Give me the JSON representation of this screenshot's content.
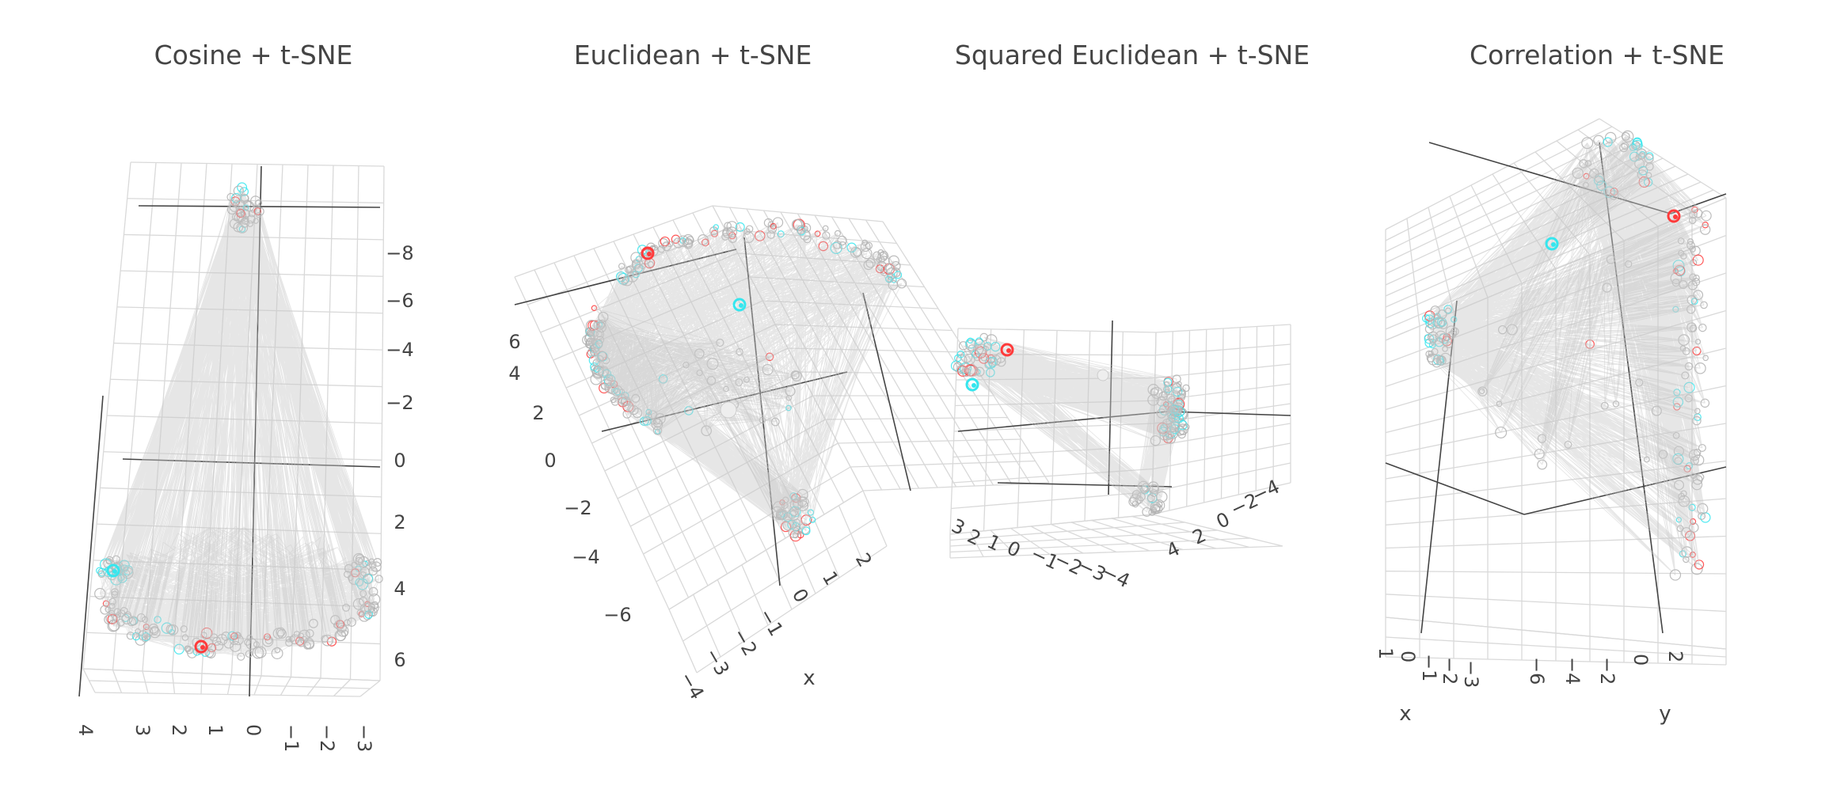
{
  "colors": {
    "edge": "#c8c8c8",
    "grid": "#d9d9d9",
    "axis": "#444444",
    "node_outline": "#b0b0b0",
    "accent_red": "#ff3b3b",
    "accent_cyan": "#35e6ee"
  },
  "chart_data": [
    {
      "type": "scatter",
      "title": "Cosine + t-SNE",
      "projection": "3d",
      "axes": {
        "z_ticks": [
          "−8",
          "−6",
          "−4",
          "−2",
          "0",
          "2",
          "4",
          "6"
        ],
        "x_ticks": [
          "4",
          "3",
          "2",
          "1",
          "0",
          "−1",
          "−2",
          "−3"
        ],
        "x_title": "",
        "y_title": "",
        "grid": true
      },
      "clusters": [
        {
          "name": "top",
          "x": 0.0,
          "y": 0.0,
          "z": -9.5
        },
        {
          "name": "bottom-left",
          "x": 3.6,
          "y": 0.0,
          "z": 4.5
        },
        {
          "name": "bottom-center",
          "x": 1.2,
          "y": 0.0,
          "z": 6.0
        },
        {
          "name": "bottom-right",
          "x": -3.3,
          "y": 0.0,
          "z": 4.0
        }
      ],
      "highlights": [
        {
          "color": "red",
          "x": 1.2,
          "z": 6.0
        },
        {
          "color": "cyan",
          "x": 3.6,
          "z": 4.5
        }
      ]
    },
    {
      "type": "scatter",
      "title": "Euclidean + t-SNE",
      "projection": "3d",
      "axes": {
        "y_ticks": [
          "6",
          "4",
          "2",
          "0",
          "−2",
          "−4",
          "−6"
        ],
        "x_ticks": [
          "−4",
          "−3",
          "−2",
          "−1",
          "0",
          "1",
          "2"
        ],
        "x_title": "x",
        "grid": true
      },
      "clusters": [
        {
          "name": "upper-ring"
        },
        {
          "name": "left-arc"
        },
        {
          "name": "lower-right"
        }
      ],
      "highlights": [
        {
          "color": "red"
        },
        {
          "color": "cyan"
        }
      ]
    },
    {
      "type": "scatter",
      "title": "Squared Euclidean + t-SNE",
      "projection": "3d",
      "axes": {
        "x_ticks": [
          "3",
          "2",
          "1",
          "0",
          "−1",
          "−2",
          "−3",
          "−4"
        ],
        "y_ticks": [
          "4",
          "2",
          "0",
          "−2",
          "−4"
        ],
        "grid": true
      },
      "clusters": [
        {
          "name": "left"
        },
        {
          "name": "right"
        },
        {
          "name": "bottom"
        }
      ],
      "highlights": [
        {
          "color": "red"
        },
        {
          "color": "cyan"
        }
      ]
    },
    {
      "type": "scatter",
      "title": "Correlation + t-SNE",
      "projection": "3d",
      "axes": {
        "x_ticks": [
          "1",
          "0",
          "−1",
          "−2",
          "−3"
        ],
        "y_ticks": [
          "−6",
          "−4",
          "−2",
          "0",
          "2"
        ],
        "x_title": "x",
        "y_title": "y",
        "grid": true
      },
      "clusters": [
        {
          "name": "left"
        },
        {
          "name": "top"
        },
        {
          "name": "right-column"
        }
      ],
      "highlights": [
        {
          "color": "red"
        },
        {
          "color": "cyan"
        }
      ]
    }
  ]
}
